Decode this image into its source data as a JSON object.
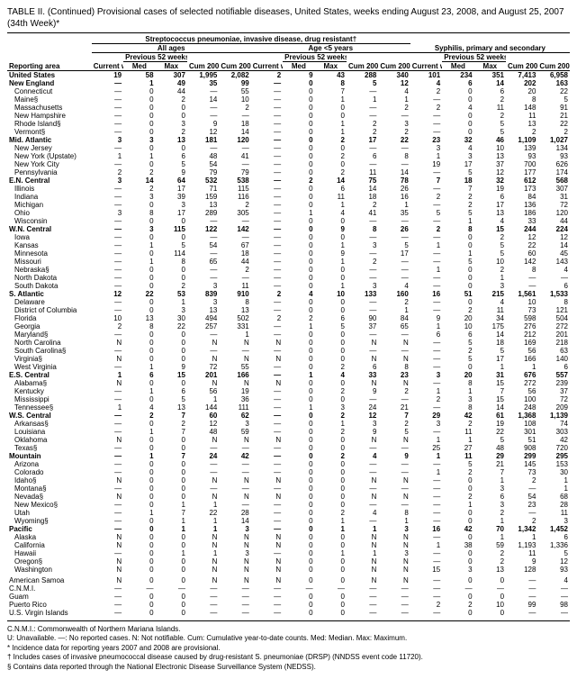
{
  "title_line1": "TABLE II. (Continued) Provisional cases of selected notifiable diseases, United States, weeks ending August 23, 2008, and August 25, 2007",
  "title_line2": "(34th Week)*",
  "group_header": "Streptococcus pneumoniae, invasive disease, drug resistant†",
  "subgroups": {
    "a": "All ages",
    "b": "Age <5 years",
    "c": "Syphilis, primary and secondary"
  },
  "col_headers": {
    "reporting_area": "Reporting area",
    "current_week": "Current week",
    "previous": "Previous 52 weeks",
    "med": "Med",
    "max": "Max",
    "cum2008": "Cum 2008",
    "cum2007": "Cum 2007"
  },
  "footnotes": {
    "cnmi": "C.N.M.I.: Commonwealth of Northern Mariana Islands.",
    "legend": "U: Unavailable.   —: No reported cases.   N: Not notifiable.   Cum: Cumulative year-to-date counts.   Med: Median.   Max: Maximum.",
    "f1": "* Incidence data for reporting years 2007 and 2008 are provisional.",
    "f2": "† Includes cases of invasive pneumococcal disease caused by drug-resistant S. pneumoniae (DRSP) (NNDSS event code 11720).",
    "f3": "§ Contains data reported through the National Electronic Disease Surveillance System (NEDSS)."
  },
  "rows": [
    {
      "n": "United States",
      "b": 1,
      "i": 0,
      "c": [
        "19",
        "58",
        "307",
        "1,995",
        "2,082",
        "2",
        "9",
        "43",
        "288",
        "340",
        "101",
        "234",
        "351",
        "7,413",
        "6,958"
      ]
    },
    {
      "n": "New England",
      "b": 1,
      "i": 0,
      "c": [
        "—",
        "1",
        "49",
        "35",
        "99",
        "—",
        "0",
        "8",
        "5",
        "12",
        "4",
        "6",
        "14",
        "202",
        "163"
      ]
    },
    {
      "n": "Connecticut",
      "i": 1,
      "c": [
        "—",
        "0",
        "44",
        "—",
        "55",
        "—",
        "0",
        "7",
        "—",
        "4",
        "2",
        "0",
        "6",
        "20",
        "22"
      ]
    },
    {
      "n": "Maine§",
      "i": 1,
      "c": [
        "—",
        "0",
        "2",
        "14",
        "10",
        "—",
        "0",
        "1",
        "1",
        "1",
        "—",
        "0",
        "2",
        "8",
        "5"
      ]
    },
    {
      "n": "Massachusetts",
      "i": 1,
      "c": [
        "—",
        "0",
        "0",
        "—",
        "2",
        "—",
        "0",
        "0",
        "—",
        "2",
        "2",
        "4",
        "11",
        "148",
        "91"
      ]
    },
    {
      "n": "New Hampshire",
      "i": 1,
      "c": [
        "—",
        "0",
        "0",
        "—",
        "—",
        "—",
        "0",
        "0",
        "—",
        "—",
        "—",
        "0",
        "2",
        "11",
        "21"
      ]
    },
    {
      "n": "Rhode Island§",
      "i": 1,
      "c": [
        "—",
        "0",
        "3",
        "9",
        "18",
        "—",
        "0",
        "1",
        "2",
        "3",
        "—",
        "0",
        "5",
        "13",
        "22"
      ]
    },
    {
      "n": "Vermont§",
      "i": 1,
      "c": [
        "—",
        "0",
        "2",
        "12",
        "14",
        "—",
        "0",
        "1",
        "2",
        "2",
        "—",
        "0",
        "5",
        "2",
        "2"
      ]
    },
    {
      "n": "Mid. Atlantic",
      "b": 1,
      "i": 0,
      "c": [
        "3",
        "3",
        "13",
        "181",
        "120",
        "—",
        "0",
        "2",
        "17",
        "22",
        "23",
        "32",
        "46",
        "1,109",
        "1,027"
      ]
    },
    {
      "n": "New Jersey",
      "i": 1,
      "c": [
        "—",
        "0",
        "0",
        "—",
        "—",
        "—",
        "0",
        "0",
        "—",
        "—",
        "3",
        "4",
        "10",
        "139",
        "134"
      ]
    },
    {
      "n": "New York (Upstate)",
      "i": 1,
      "c": [
        "1",
        "1",
        "6",
        "48",
        "41",
        "—",
        "0",
        "2",
        "6",
        "8",
        "1",
        "3",
        "13",
        "93",
        "93"
      ]
    },
    {
      "n": "New York City",
      "i": 1,
      "c": [
        "—",
        "0",
        "5",
        "54",
        "—",
        "—",
        "0",
        "0",
        "—",
        "—",
        "19",
        "17",
        "37",
        "700",
        "626"
      ]
    },
    {
      "n": "Pennsylvania",
      "i": 1,
      "c": [
        "2",
        "2",
        "9",
        "79",
        "79",
        "—",
        "0",
        "2",
        "11",
        "14",
        "—",
        "5",
        "12",
        "177",
        "174"
      ]
    },
    {
      "n": "E.N. Central",
      "b": 1,
      "i": 0,
      "c": [
        "3",
        "14",
        "64",
        "532",
        "538",
        "—",
        "2",
        "14",
        "75",
        "78",
        "7",
        "18",
        "32",
        "612",
        "568"
      ]
    },
    {
      "n": "Illinois",
      "i": 1,
      "c": [
        "—",
        "2",
        "17",
        "71",
        "115",
        "—",
        "0",
        "6",
        "14",
        "26",
        "—",
        "7",
        "19",
        "173",
        "307"
      ]
    },
    {
      "n": "Indiana",
      "i": 1,
      "c": [
        "—",
        "3",
        "39",
        "159",
        "116",
        "—",
        "0",
        "11",
        "18",
        "16",
        "2",
        "2",
        "6",
        "84",
        "31"
      ]
    },
    {
      "n": "Michigan",
      "i": 1,
      "c": [
        "—",
        "0",
        "3",
        "13",
        "2",
        "—",
        "0",
        "1",
        "2",
        "1",
        "—",
        "2",
        "17",
        "136",
        "72"
      ]
    },
    {
      "n": "Ohio",
      "i": 1,
      "c": [
        "3",
        "8",
        "17",
        "289",
        "305",
        "—",
        "1",
        "4",
        "41",
        "35",
        "5",
        "5",
        "13",
        "186",
        "120"
      ]
    },
    {
      "n": "Wisconsin",
      "i": 1,
      "c": [
        "—",
        "0",
        "0",
        "—",
        "—",
        "—",
        "0",
        "0",
        "—",
        "—",
        "—",
        "1",
        "4",
        "33",
        "44"
      ]
    },
    {
      "n": "W.N. Central",
      "b": 1,
      "i": 0,
      "c": [
        "—",
        "3",
        "115",
        "122",
        "142",
        "—",
        "0",
        "9",
        "8",
        "26",
        "2",
        "8",
        "15",
        "244",
        "224"
      ]
    },
    {
      "n": "Iowa",
      "i": 1,
      "c": [
        "—",
        "0",
        "0",
        "—",
        "—",
        "—",
        "0",
        "0",
        "—",
        "—",
        "—",
        "0",
        "2",
        "12",
        "12"
      ]
    },
    {
      "n": "Kansas",
      "i": 1,
      "c": [
        "—",
        "1",
        "5",
        "54",
        "67",
        "—",
        "0",
        "1",
        "3",
        "5",
        "1",
        "0",
        "5",
        "22",
        "14"
      ]
    },
    {
      "n": "Minnesota",
      "i": 1,
      "c": [
        "—",
        "0",
        "114",
        "—",
        "18",
        "—",
        "0",
        "9",
        "—",
        "17",
        "—",
        "1",
        "5",
        "60",
        "45"
      ]
    },
    {
      "n": "Missouri",
      "i": 1,
      "c": [
        "—",
        "1",
        "8",
        "65",
        "44",
        "—",
        "0",
        "1",
        "2",
        "—",
        "—",
        "5",
        "10",
        "142",
        "143"
      ]
    },
    {
      "n": "Nebraska§",
      "i": 1,
      "c": [
        "—",
        "0",
        "0",
        "—",
        "2",
        "—",
        "0",
        "0",
        "—",
        "—",
        "1",
        "0",
        "2",
        "8",
        "4"
      ]
    },
    {
      "n": "North Dakota",
      "i": 1,
      "c": [
        "—",
        "0",
        "0",
        "—",
        "—",
        "—",
        "0",
        "0",
        "—",
        "—",
        "—",
        "0",
        "1",
        "—",
        "—"
      ]
    },
    {
      "n": "South Dakota",
      "i": 1,
      "c": [
        "—",
        "0",
        "2",
        "3",
        "11",
        "—",
        "0",
        "1",
        "3",
        "4",
        "—",
        "0",
        "3",
        "—",
        "6"
      ]
    },
    {
      "n": "S. Atlantic",
      "b": 1,
      "i": 0,
      "c": [
        "12",
        "22",
        "53",
        "839",
        "910",
        "2",
        "4",
        "10",
        "133",
        "160",
        "16",
        "51",
        "215",
        "1,561",
        "1,533"
      ]
    },
    {
      "n": "Delaware",
      "i": 1,
      "c": [
        "—",
        "0",
        "1",
        "3",
        "8",
        "—",
        "0",
        "0",
        "—",
        "2",
        "—",
        "0",
        "4",
        "10",
        "8"
      ]
    },
    {
      "n": "District of Columbia",
      "i": 1,
      "c": [
        "—",
        "0",
        "3",
        "13",
        "13",
        "—",
        "0",
        "0",
        "—",
        "1",
        "—",
        "2",
        "11",
        "73",
        "121"
      ]
    },
    {
      "n": "Florida",
      "i": 1,
      "c": [
        "10",
        "13",
        "30",
        "494",
        "502",
        "2",
        "2",
        "6",
        "90",
        "84",
        "9",
        "20",
        "34",
        "598",
        "504"
      ]
    },
    {
      "n": "Georgia",
      "i": 1,
      "c": [
        "2",
        "8",
        "22",
        "257",
        "331",
        "—",
        "1",
        "5",
        "37",
        "65",
        "1",
        "10",
        "175",
        "276",
        "272"
      ]
    },
    {
      "n": "Maryland§",
      "i": 1,
      "c": [
        "—",
        "0",
        "0",
        "—",
        "1",
        "—",
        "0",
        "0",
        "—",
        "—",
        "6",
        "6",
        "14",
        "212",
        "201"
      ]
    },
    {
      "n": "North Carolina",
      "i": 1,
      "c": [
        "N",
        "0",
        "0",
        "N",
        "N",
        "N",
        "0",
        "0",
        "N",
        "N",
        "—",
        "5",
        "18",
        "169",
        "218"
      ]
    },
    {
      "n": "South Carolina§",
      "i": 1,
      "c": [
        "—",
        "0",
        "0",
        "—",
        "—",
        "—",
        "0",
        "0",
        "—",
        "—",
        "—",
        "2",
        "5",
        "56",
        "63"
      ]
    },
    {
      "n": "Virginia§",
      "i": 1,
      "c": [
        "N",
        "0",
        "0",
        "N",
        "N",
        "N",
        "0",
        "0",
        "N",
        "N",
        "—",
        "5",
        "17",
        "166",
        "140"
      ]
    },
    {
      "n": "West Virginia",
      "i": 1,
      "c": [
        "—",
        "1",
        "9",
        "72",
        "55",
        "—",
        "0",
        "2",
        "6",
        "8",
        "—",
        "0",
        "1",
        "1",
        "6"
      ]
    },
    {
      "n": "E.S. Central",
      "b": 1,
      "i": 0,
      "c": [
        "1",
        "6",
        "15",
        "201",
        "166",
        "—",
        "1",
        "4",
        "33",
        "23",
        "3",
        "20",
        "31",
        "676",
        "557"
      ]
    },
    {
      "n": "Alabama§",
      "i": 1,
      "c": [
        "N",
        "0",
        "0",
        "N",
        "N",
        "N",
        "0",
        "0",
        "N",
        "N",
        "—",
        "8",
        "15",
        "272",
        "239"
      ]
    },
    {
      "n": "Kentucky",
      "i": 1,
      "c": [
        "—",
        "1",
        "6",
        "56",
        "19",
        "—",
        "0",
        "2",
        "9",
        "2",
        "1",
        "1",
        "7",
        "56",
        "37"
      ]
    },
    {
      "n": "Mississippi",
      "i": 1,
      "c": [
        "—",
        "0",
        "5",
        "1",
        "36",
        "—",
        "0",
        "0",
        "—",
        "—",
        "2",
        "3",
        "15",
        "100",
        "72"
      ]
    },
    {
      "n": "Tennessee§",
      "i": 1,
      "c": [
        "1",
        "4",
        "13",
        "144",
        "111",
        "—",
        "1",
        "3",
        "24",
        "21",
        "—",
        "8",
        "14",
        "248",
        "209"
      ]
    },
    {
      "n": "W.S. Central",
      "b": 1,
      "i": 0,
      "c": [
        "—",
        "2",
        "7",
        "60",
        "62",
        "—",
        "0",
        "2",
        "12",
        "7",
        "29",
        "42",
        "61",
        "1,368",
        "1,139"
      ]
    },
    {
      "n": "Arkansas§",
      "i": 1,
      "c": [
        "—",
        "0",
        "2",
        "12",
        "3",
        "—",
        "0",
        "1",
        "3",
        "2",
        "3",
        "2",
        "19",
        "108",
        "74"
      ]
    },
    {
      "n": "Louisiana",
      "i": 1,
      "c": [
        "—",
        "1",
        "7",
        "48",
        "59",
        "—",
        "0",
        "2",
        "9",
        "5",
        "—",
        "11",
        "22",
        "301",
        "303"
      ]
    },
    {
      "n": "Oklahoma",
      "i": 1,
      "c": [
        "N",
        "0",
        "0",
        "N",
        "N",
        "N",
        "0",
        "0",
        "N",
        "N",
        "1",
        "1",
        "5",
        "51",
        "42"
      ]
    },
    {
      "n": "Texas§",
      "i": 1,
      "c": [
        "—",
        "0",
        "0",
        "—",
        "—",
        "—",
        "0",
        "0",
        "—",
        "—",
        "25",
        "27",
        "48",
        "908",
        "720"
      ]
    },
    {
      "n": "Mountain",
      "b": 1,
      "i": 0,
      "c": [
        "—",
        "1",
        "7",
        "24",
        "42",
        "—",
        "0",
        "2",
        "4",
        "9",
        "1",
        "11",
        "29",
        "299",
        "295"
      ]
    },
    {
      "n": "Arizona",
      "i": 1,
      "c": [
        "—",
        "0",
        "0",
        "—",
        "—",
        "—",
        "0",
        "0",
        "—",
        "—",
        "—",
        "5",
        "21",
        "145",
        "153"
      ]
    },
    {
      "n": "Colorado",
      "i": 1,
      "c": [
        "—",
        "0",
        "0",
        "—",
        "—",
        "—",
        "0",
        "0",
        "—",
        "—",
        "1",
        "2",
        "7",
        "73",
        "30"
      ]
    },
    {
      "n": "Idaho§",
      "i": 1,
      "c": [
        "N",
        "0",
        "0",
        "N",
        "N",
        "N",
        "0",
        "0",
        "N",
        "N",
        "—",
        "0",
        "1",
        "2",
        "1"
      ]
    },
    {
      "n": "Montana§",
      "i": 1,
      "c": [
        "—",
        "0",
        "0",
        "—",
        "—",
        "—",
        "0",
        "0",
        "—",
        "—",
        "—",
        "0",
        "3",
        "—",
        "1"
      ]
    },
    {
      "n": "Nevada§",
      "i": 1,
      "c": [
        "N",
        "0",
        "0",
        "N",
        "N",
        "N",
        "0",
        "0",
        "N",
        "N",
        "—",
        "2",
        "6",
        "54",
        "68"
      ]
    },
    {
      "n": "New Mexico§",
      "i": 1,
      "c": [
        "—",
        "0",
        "1",
        "1",
        "—",
        "—",
        "0",
        "0",
        "—",
        "—",
        "—",
        "1",
        "3",
        "23",
        "28"
      ]
    },
    {
      "n": "Utah",
      "i": 1,
      "c": [
        "—",
        "1",
        "7",
        "22",
        "28",
        "—",
        "0",
        "2",
        "4",
        "8",
        "—",
        "0",
        "2",
        "—",
        "11"
      ]
    },
    {
      "n": "Wyoming§",
      "i": 1,
      "c": [
        "—",
        "0",
        "1",
        "1",
        "14",
        "—",
        "0",
        "1",
        "—",
        "1",
        "—",
        "0",
        "1",
        "2",
        "3"
      ]
    },
    {
      "n": "Pacific",
      "b": 1,
      "i": 0,
      "c": [
        "—",
        "0",
        "1",
        "1",
        "3",
        "—",
        "0",
        "1",
        "1",
        "3",
        "16",
        "42",
        "70",
        "1,342",
        "1,452"
      ]
    },
    {
      "n": "Alaska",
      "i": 1,
      "c": [
        "N",
        "0",
        "0",
        "N",
        "N",
        "N",
        "0",
        "0",
        "N",
        "N",
        "—",
        "0",
        "1",
        "1",
        "6"
      ]
    },
    {
      "n": "California",
      "i": 1,
      "c": [
        "N",
        "0",
        "0",
        "N",
        "N",
        "N",
        "0",
        "0",
        "N",
        "N",
        "1",
        "38",
        "59",
        "1,193",
        "1,336"
      ]
    },
    {
      "n": "Hawaii",
      "i": 1,
      "c": [
        "—",
        "0",
        "1",
        "1",
        "3",
        "—",
        "0",
        "1",
        "1",
        "3",
        "—",
        "0",
        "2",
        "11",
        "5"
      ]
    },
    {
      "n": "Oregon§",
      "i": 1,
      "c": [
        "N",
        "0",
        "0",
        "N",
        "N",
        "N",
        "0",
        "0",
        "N",
        "N",
        "—",
        "0",
        "2",
        "9",
        "12"
      ]
    },
    {
      "n": "Washington",
      "i": 1,
      "c": [
        "N",
        "0",
        "0",
        "N",
        "N",
        "N",
        "0",
        "0",
        "N",
        "N",
        "15",
        "3",
        "13",
        "128",
        "93"
      ]
    },
    {
      "n": "American Samoa",
      "i": 0,
      "sp": 1,
      "c": [
        "N",
        "0",
        "0",
        "N",
        "N",
        "N",
        "0",
        "0",
        "N",
        "N",
        "—",
        "0",
        "0",
        "—",
        "4"
      ]
    },
    {
      "n": "C.N.M.I.",
      "i": 0,
      "c": [
        "—",
        "—",
        "—",
        "—",
        "—",
        "—",
        "—",
        "—",
        "—",
        "—",
        "—",
        "—",
        "—",
        "—",
        "—"
      ]
    },
    {
      "n": "Guam",
      "i": 0,
      "c": [
        "—",
        "0",
        "0",
        "—",
        "—",
        "—",
        "0",
        "0",
        "—",
        "—",
        "—",
        "0",
        "0",
        "—",
        "—"
      ]
    },
    {
      "n": "Puerto Rico",
      "i": 0,
      "c": [
        "—",
        "0",
        "0",
        "—",
        "—",
        "—",
        "0",
        "0",
        "—",
        "—",
        "2",
        "2",
        "10",
        "99",
        "98"
      ]
    },
    {
      "n": "U.S. Virgin Islands",
      "i": 0,
      "c": [
        "—",
        "0",
        "0",
        "—",
        "—",
        "—",
        "0",
        "0",
        "—",
        "—",
        "—",
        "0",
        "0",
        "—",
        "—"
      ]
    }
  ]
}
